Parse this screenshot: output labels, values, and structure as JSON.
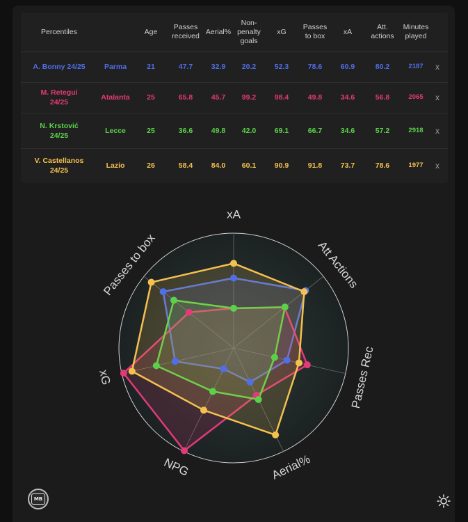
{
  "table": {
    "headers": [
      "Percentiles",
      "Age",
      "Passes\nreceived",
      "Aerial%",
      "Non-\npenalty\ngoals",
      "xG",
      "Passes\nto box",
      "xA",
      "Att.\nactions",
      "Minutes\nplayed"
    ],
    "remove_label": "x",
    "rows": [
      {
        "player": "A. Bonny 24/25",
        "team": "Parma",
        "age": "21",
        "passes_received": "47.7",
        "aerial": "32.9",
        "npg": "20.2",
        "xg": "52.3",
        "passes_to_box": "78.6",
        "xa": "60.9",
        "att_actions": "80.2",
        "minutes": "2187",
        "color": "#4f6ee8"
      },
      {
        "player": "M. Retegui\n24/25",
        "team": "Atalanta",
        "age": "25",
        "passes_received": "65.8",
        "aerial": "45.7",
        "npg": "99.2",
        "xg": "98.4",
        "passes_to_box": "49.8",
        "xa": "34.6",
        "att_actions": "56.8",
        "minutes": "2065",
        "color": "#e23a78"
      },
      {
        "player": "N. Krstović\n24/25",
        "team": "Lecce",
        "age": "25",
        "passes_received": "36.6",
        "aerial": "49.8",
        "npg": "42.0",
        "xg": "69.1",
        "passes_to_box": "66.7",
        "xa": "34.6",
        "att_actions": "57.2",
        "minutes": "2918",
        "color": "#5bd14a"
      },
      {
        "player": "V. Castellanos\n24/25",
        "team": "Lazio",
        "age": "26",
        "passes_received": "58.4",
        "aerial": "84.0",
        "npg": "60.1",
        "xg": "90.9",
        "passes_to_box": "91.8",
        "xa": "73.7",
        "att_actions": "78.6",
        "minutes": "1977",
        "color": "#f5c14e"
      }
    ]
  },
  "chart_data": {
    "type": "radar",
    "axes": [
      "xA",
      "Att Actions",
      "Passes Rec",
      "Aerial%",
      "NPG",
      "xG",
      "Passes to box"
    ],
    "range": [
      0,
      100
    ],
    "series": [
      {
        "name": "A. Bonny 24/25",
        "color": "#4f6ee8",
        "values": [
          60.9,
          80.2,
          47.7,
          32.9,
          20.2,
          52.3,
          78.6
        ]
      },
      {
        "name": "M. Retegui 24/25",
        "color": "#e23a78",
        "values": [
          34.6,
          56.8,
          65.8,
          45.7,
          99.2,
          98.4,
          49.8
        ]
      },
      {
        "name": "N. Krstović 24/25",
        "color": "#5bd14a",
        "values": [
          34.6,
          57.2,
          36.6,
          49.8,
          42.0,
          69.1,
          66.7
        ]
      },
      {
        "name": "V. Castellanos 24/25",
        "color": "#f5c14e",
        "values": [
          73.7,
          78.6,
          58.4,
          84.0,
          60.1,
          90.9,
          91.8
        ]
      }
    ]
  },
  "logo": {
    "text": "MB"
  },
  "icons": {
    "theme_toggle": "sun-icon",
    "logo": "mb-logo-icon"
  }
}
